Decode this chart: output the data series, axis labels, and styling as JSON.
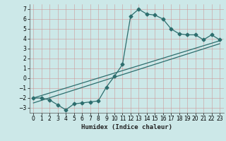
{
  "title": "",
  "xlabel": "Humidex (Indice chaleur)",
  "ylabel": "",
  "bg_color": "#cce8e8",
  "grid_color": "#b8cfcf",
  "line_color": "#2d6e6e",
  "xlim": [
    -0.5,
    23.5
  ],
  "ylim": [
    -3.5,
    7.5
  ],
  "yticks": [
    -3,
    -2,
    -1,
    0,
    1,
    2,
    3,
    4,
    5,
    6,
    7
  ],
  "xticks": [
    0,
    1,
    2,
    3,
    4,
    5,
    6,
    7,
    8,
    9,
    10,
    11,
    12,
    13,
    14,
    15,
    16,
    17,
    18,
    19,
    20,
    21,
    22,
    23
  ],
  "series1_x": [
    0,
    1,
    2,
    3,
    4,
    5,
    6,
    7,
    8,
    9,
    10,
    11,
    12,
    13,
    14,
    15,
    16,
    17,
    18,
    19,
    20,
    21,
    22,
    23
  ],
  "series1_y": [
    -2.0,
    -2.0,
    -2.2,
    -2.7,
    -3.2,
    -2.6,
    -2.5,
    -2.4,
    -2.3,
    -0.9,
    0.2,
    1.4,
    6.3,
    7.0,
    6.5,
    6.4,
    6.0,
    5.0,
    4.5,
    4.4,
    4.4,
    3.9,
    4.4,
    3.9
  ],
  "series2_x": [
    0,
    23
  ],
  "series2_y": [
    -2.0,
    3.8
  ],
  "series3_x": [
    0,
    23
  ],
  "series3_y": [
    -2.5,
    3.5
  ],
  "tick_fontsize": 5.5,
  "xlabel_fontsize": 6.5,
  "marker_size": 2.5,
  "line_width": 0.9
}
